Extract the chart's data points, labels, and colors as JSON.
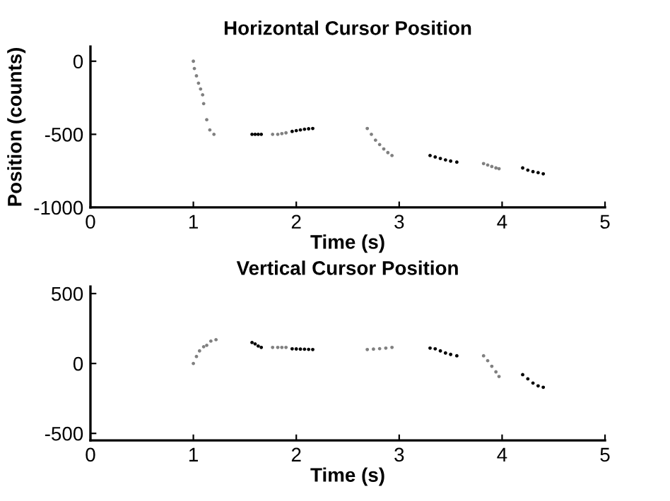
{
  "chart_data": [
    {
      "type": "scatter",
      "title": "Horizontal Cursor Position",
      "xlabel": "Time (s)",
      "ylabel": "Position (counts)",
      "xlim": [
        0,
        5
      ],
      "xticks": [
        0,
        1,
        2,
        3,
        4,
        5
      ],
      "ylim": [
        -1000,
        100
      ],
      "yticks": [
        -1000,
        -500,
        0
      ],
      "marker": "circle",
      "grid": false,
      "series": [
        {
          "color": "#808080",
          "x": [
            1.0,
            1.01,
            1.03,
            1.05,
            1.07,
            1.09,
            1.1,
            1.13,
            1.16,
            1.2,
            1.77,
            1.82,
            1.86,
            1.9,
            2.69,
            2.73,
            2.77,
            2.81,
            2.85,
            2.89,
            2.93,
            3.82,
            3.86,
            3.9,
            3.94,
            3.97
          ],
          "values": [
            0,
            -50,
            -100,
            -150,
            -190,
            -230,
            -290,
            -400,
            -470,
            -500,
            -500,
            -500,
            -495,
            -490,
            -460,
            -500,
            -540,
            -570,
            -600,
            -625,
            -645,
            -700,
            -710,
            -720,
            -730,
            -735
          ]
        },
        {
          "color": "#000000",
          "x": [
            1.57,
            1.6,
            1.63,
            1.66,
            1.96,
            2.0,
            2.04,
            2.08,
            2.12,
            2.16,
            3.3,
            3.35,
            3.4,
            3.45,
            3.5,
            3.56,
            4.2,
            4.25,
            4.3,
            4.35,
            4.4
          ],
          "values": [
            -500,
            -500,
            -500,
            -500,
            -480,
            -475,
            -470,
            -465,
            -462,
            -460,
            -645,
            -655,
            -665,
            -675,
            -683,
            -690,
            -730,
            -745,
            -755,
            -762,
            -770
          ]
        }
      ]
    },
    {
      "type": "scatter",
      "title": "Vertical Cursor Position",
      "xlabel": "Time (s)",
      "xlim": [
        0,
        5
      ],
      "xticks": [
        0,
        1,
        2,
        3,
        4,
        5
      ],
      "ylim": [
        -550,
        550
      ],
      "yticks": [
        -500,
        0,
        500
      ],
      "marker": "circle",
      "grid": false,
      "series": [
        {
          "color": "#808080",
          "x": [
            1.0,
            1.03,
            1.06,
            1.1,
            1.13,
            1.17,
            1.22,
            1.77,
            1.82,
            1.86,
            1.9,
            2.69,
            2.75,
            2.81,
            2.87,
            2.93,
            3.82,
            3.86,
            3.9,
            3.94,
            3.97
          ],
          "values": [
            0,
            50,
            90,
            120,
            130,
            160,
            170,
            115,
            115,
            115,
            115,
            100,
            103,
            106,
            110,
            115,
            55,
            20,
            -20,
            -60,
            -93
          ]
        },
        {
          "color": "#000000",
          "x": [
            1.57,
            1.6,
            1.63,
            1.66,
            1.96,
            2.0,
            2.04,
            2.08,
            2.12,
            2.16,
            3.3,
            3.35,
            3.4,
            3.45,
            3.5,
            3.56,
            4.2,
            4.25,
            4.3,
            4.35,
            4.4
          ],
          "values": [
            150,
            140,
            125,
            115,
            105,
            104,
            103,
            102,
            101,
            100,
            110,
            105,
            90,
            75,
            65,
            55,
            -80,
            -110,
            -140,
            -160,
            -170
          ]
        }
      ]
    }
  ]
}
